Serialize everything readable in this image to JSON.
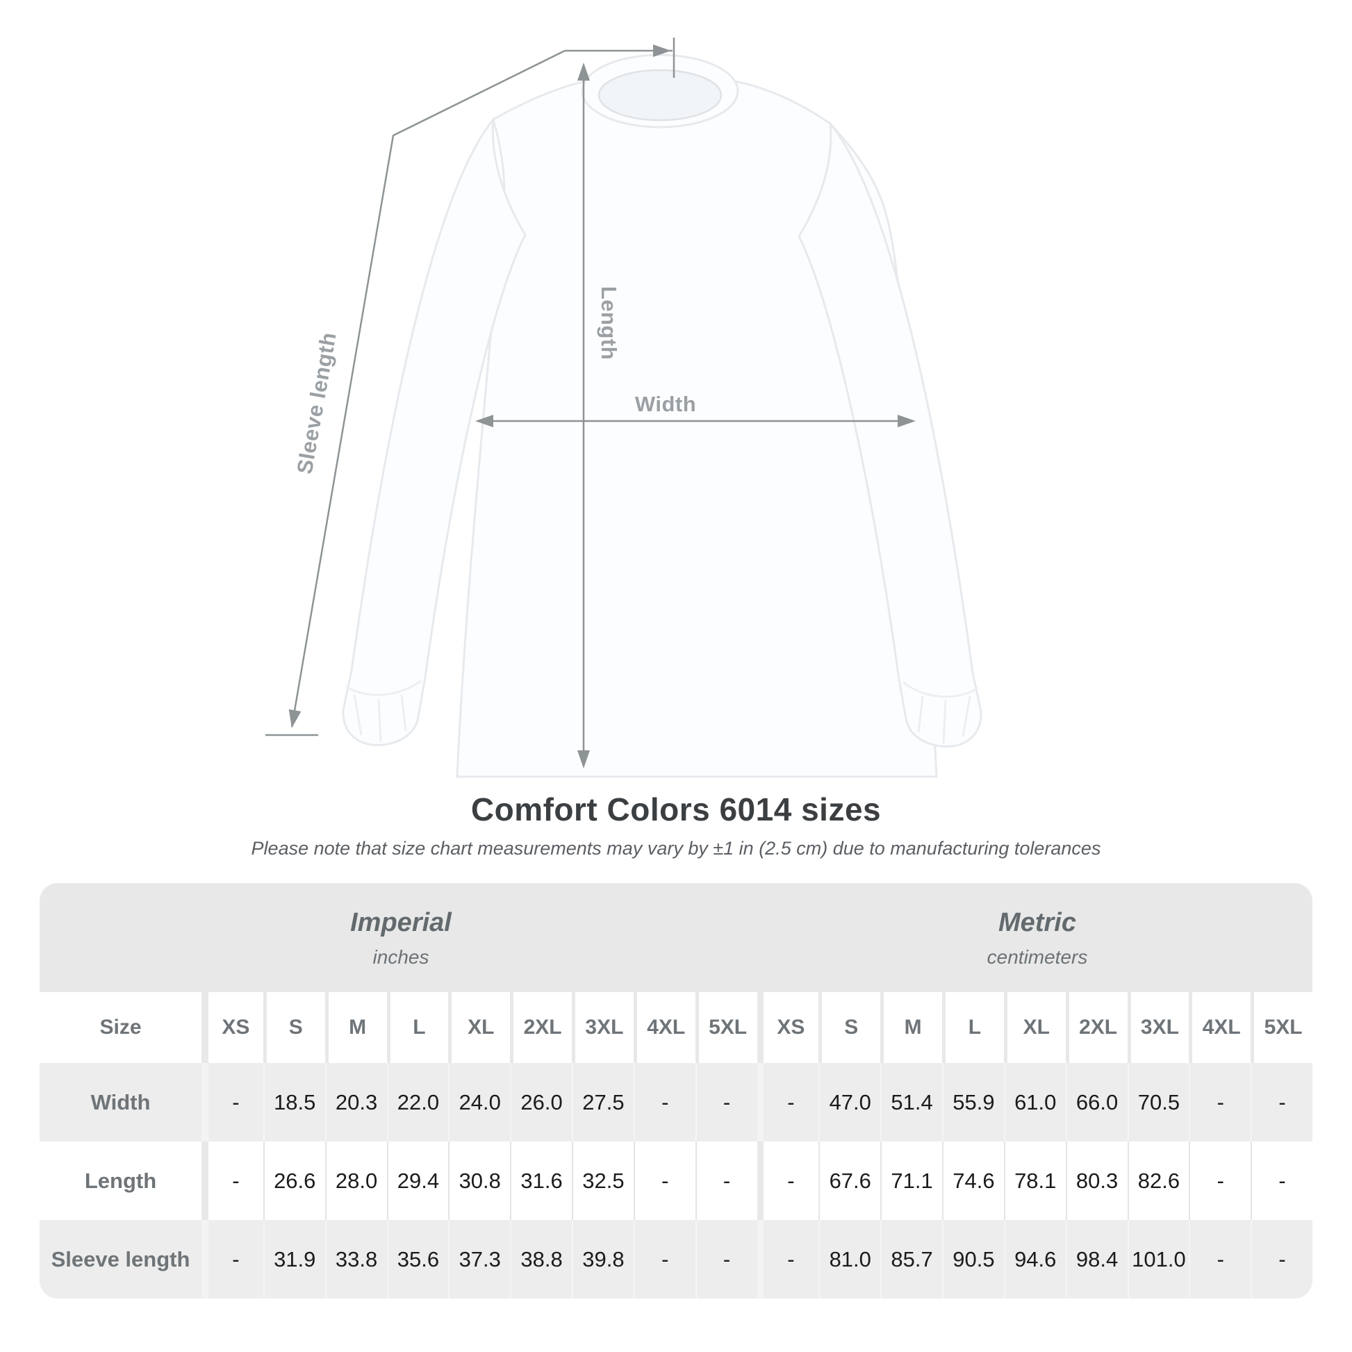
{
  "title": "Comfort Colors 6014 sizes",
  "subtitle": "Please note that size chart measurements may vary by ±1 in (2.5 cm) due to manufacturing tolerances",
  "diagram": {
    "labels": {
      "sleeve_length": "Sleeve length",
      "length": "Length",
      "width": "Width"
    }
  },
  "table": {
    "size_header": "Size",
    "sizes": [
      "XS",
      "S",
      "M",
      "L",
      "XL",
      "2XL",
      "3XL",
      "4XL",
      "5XL"
    ],
    "sections": [
      {
        "name": "Imperial",
        "unit": "inches"
      },
      {
        "name": "Metric",
        "unit": "centimeters"
      }
    ],
    "empty_cell": "-"
  },
  "colors": {
    "dimension_line": "#8e9396",
    "dimension_label": "#9aa0a4",
    "title_text": "#3b3f42",
    "subtitle_text": "#5b5f63",
    "table_background": "#e8e8e8",
    "row_gray": "#ededed",
    "row_white": "#ffffff",
    "header_text": "#6e7478",
    "value_text": "#1a1b1c"
  },
  "chart_data": {
    "type": "table",
    "title": "Comfort Colors 6014 sizes",
    "note": "Size chart measurements may vary by ±1 in (2.5 cm) due to manufacturing tolerances",
    "units": {
      "imperial": "inches",
      "metric": "centimeters"
    },
    "columns": [
      "XS",
      "S",
      "M",
      "L",
      "XL",
      "2XL",
      "3XL",
      "4XL",
      "5XL"
    ],
    "series": [
      {
        "measurement": "Width",
        "imperial": [
          null,
          18.5,
          20.3,
          22.0,
          24.0,
          26.0,
          27.5,
          null,
          null
        ],
        "metric": [
          null,
          47.0,
          51.4,
          55.9,
          61.0,
          66.0,
          70.5,
          null,
          null
        ]
      },
      {
        "measurement": "Length",
        "imperial": [
          null,
          26.6,
          28.0,
          29.4,
          30.8,
          31.6,
          32.5,
          null,
          null
        ],
        "metric": [
          null,
          67.6,
          71.1,
          74.6,
          78.1,
          80.3,
          82.6,
          null,
          null
        ]
      },
      {
        "measurement": "Sleeve length",
        "imperial": [
          null,
          31.9,
          33.8,
          35.6,
          37.3,
          38.8,
          39.8,
          null,
          null
        ],
        "metric": [
          null,
          81.0,
          85.7,
          90.5,
          94.6,
          98.4,
          101.0,
          null,
          null
        ]
      }
    ]
  }
}
